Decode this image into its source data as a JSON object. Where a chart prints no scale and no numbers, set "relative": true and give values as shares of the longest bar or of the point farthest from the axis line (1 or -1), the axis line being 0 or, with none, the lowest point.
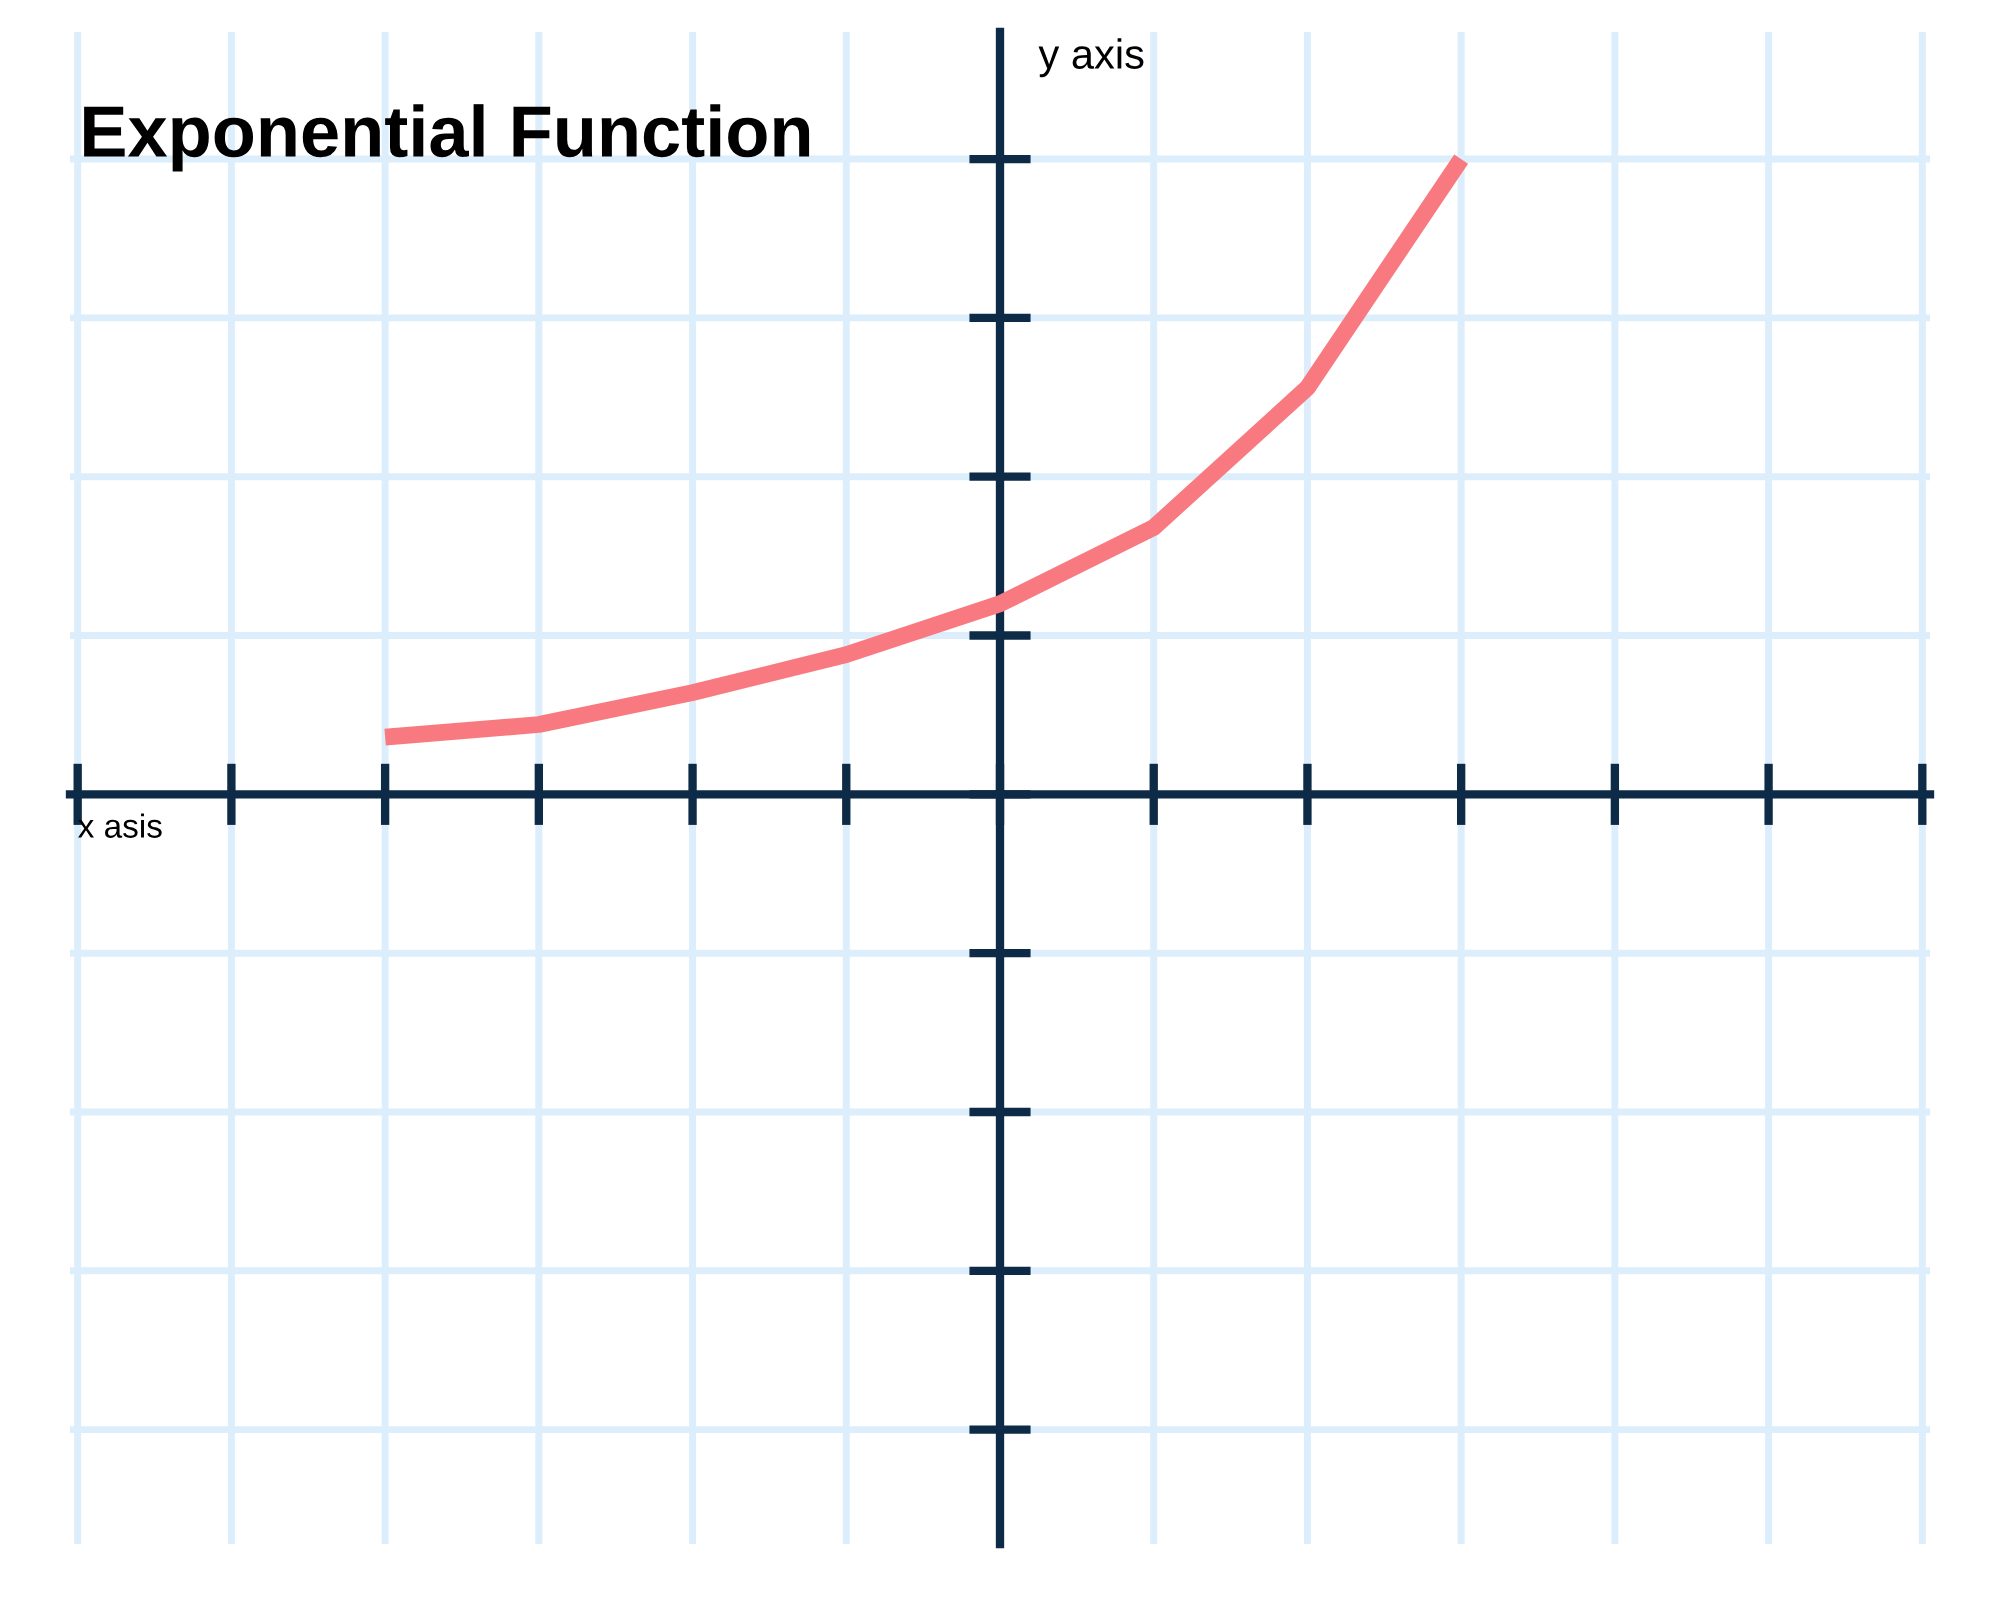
{
  "chart_data": {
    "type": "line",
    "title": "Exponential Function",
    "xlabel": "x asis",
    "ylabel": "y axis",
    "relative": true,
    "categories": [
      null,
      null,
      null,
      null,
      null,
      null,
      null,
      null,
      null,
      null,
      null,
      null,
      null
    ],
    "series": [
      {
        "color": "#f87a80",
        "values": [
          null,
          null,
          0.09,
          0.11,
          0.16,
          0.22,
          0.3,
          0.42,
          0.64,
          1,
          null,
          null,
          null
        ]
      }
    ],
    "grid": true,
    "legend": false,
    "marker": "none",
    "line_style": "solid"
  }
}
